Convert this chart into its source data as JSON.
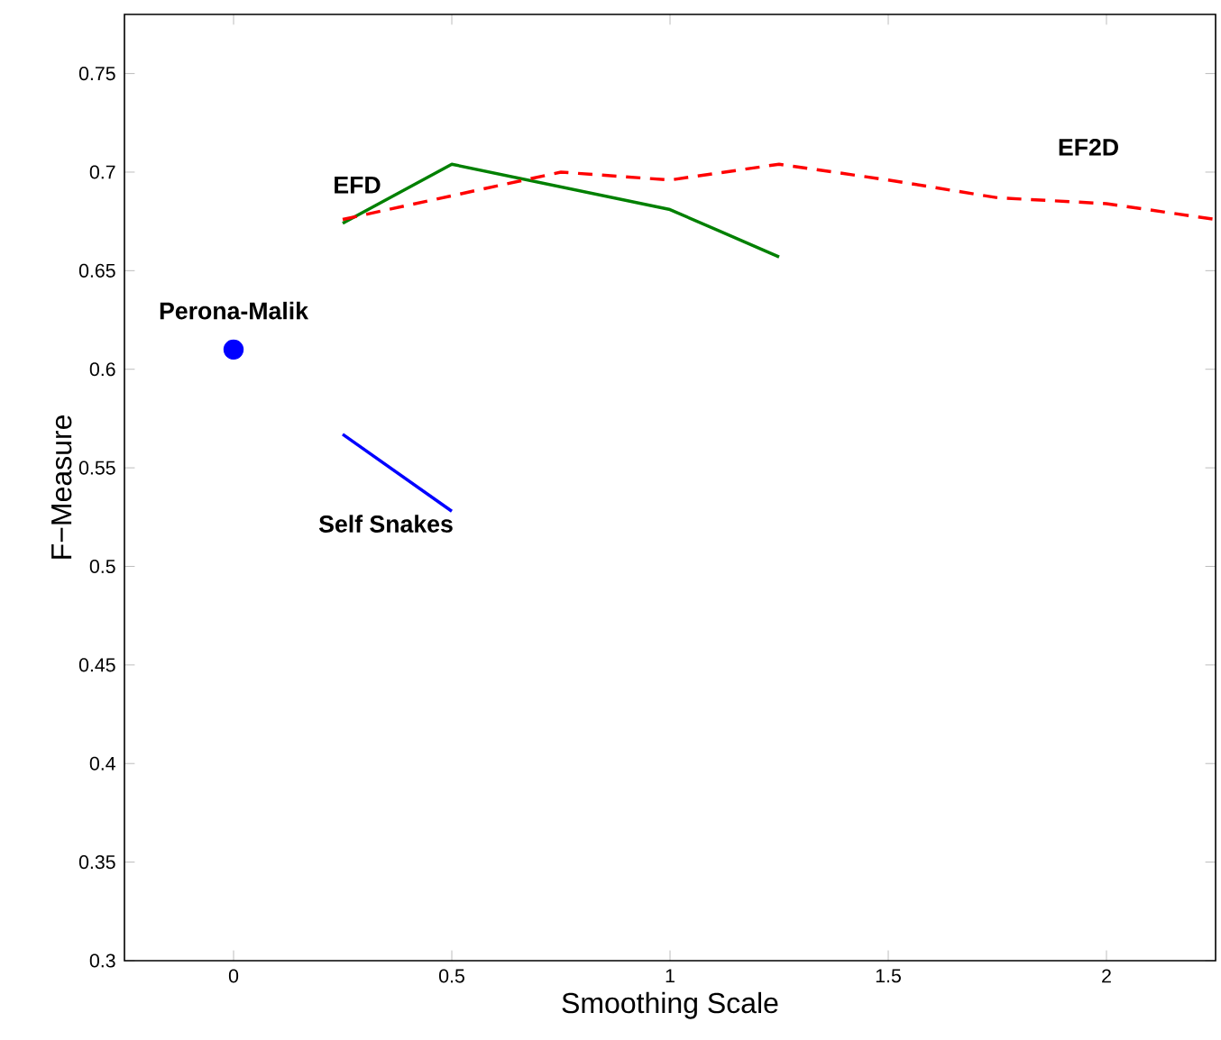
{
  "chart_data": {
    "type": "line",
    "xlabel": "Smoothing Scale",
    "ylabel": "F−Measure",
    "xlim": [
      -0.25,
      2.25
    ],
    "ylim": [
      0.3,
      0.78
    ],
    "xticks": [
      0,
      0.5,
      1,
      1.5,
      2
    ],
    "yticks": [
      0.3,
      0.35,
      0.4,
      0.45,
      0.5,
      0.55,
      0.6,
      0.65,
      0.7,
      0.75
    ],
    "grid": false,
    "series": [
      {
        "name": "EFD",
        "color": "#008000",
        "line_style": "solid",
        "x": [
          0.25,
          0.5,
          1.0,
          1.25
        ],
        "values": [
          0.674,
          0.704,
          0.681,
          0.657
        ]
      },
      {
        "name": "EF2D",
        "color": "#ff0000",
        "line_style": "dashed",
        "x": [
          0.25,
          0.5,
          0.75,
          1.0,
          1.25,
          1.5,
          1.75,
          2.0,
          2.25
        ],
        "values": [
          0.676,
          0.688,
          0.7,
          0.696,
          0.704,
          0.696,
          0.687,
          0.684,
          0.676
        ]
      },
      {
        "name": "Perona-Malik",
        "type": "scatter",
        "color": "#0000ff",
        "marker": "circle",
        "x": [
          0
        ],
        "values": [
          0.61
        ]
      },
      {
        "name": "Self Snakes",
        "color": "#0000ff",
        "line_style": "solid",
        "x": [
          0.25,
          0.5
        ],
        "values": [
          0.567,
          0.528
        ]
      }
    ]
  }
}
